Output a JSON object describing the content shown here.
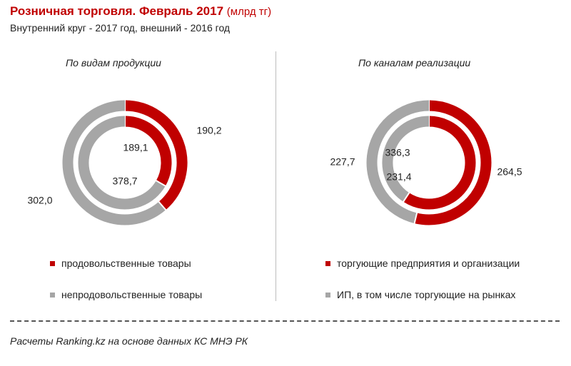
{
  "title": "Розничная торговля. Февраль 2017",
  "title_unit": "(млрд тг)",
  "subtitle": "Внутренний круг - 2017 год, внешний - 2016 год",
  "source": "Расчеты Ranking.kz на основе данных КС МНЭ РК",
  "colors": {
    "red": "#c00000",
    "gray": "#a6a6a6"
  },
  "chart_data": [
    {
      "type": "pie",
      "variant": "double-donut",
      "title": "По видам продукции",
      "categories": [
        "продовольственные товары",
        "непродовольственные товары"
      ],
      "series": [
        {
          "values": [
            189.1,
            378.7
          ],
          "ring": "inner"
        },
        {
          "values": [
            190.2,
            302.0
          ],
          "ring": "outer"
        }
      ],
      "labels": {
        "inner": [
          "189,1",
          "378,7"
        ],
        "outer": [
          "190,2",
          "302,0"
        ]
      },
      "legend": [
        {
          "label": "продовольственные товары",
          "color": "#c00000"
        },
        {
          "label": "непродовольственные товары",
          "color": "#a6a6a6"
        }
      ]
    },
    {
      "type": "pie",
      "variant": "double-donut",
      "title": "По каналам реализации",
      "categories": [
        "торгующие предприятия и организации",
        "ИП, в том числе торгующие на рынках"
      ],
      "series": [
        {
          "values": [
            336.3,
            231.4
          ],
          "ring": "inner"
        },
        {
          "values": [
            264.5,
            227.7
          ],
          "ring": "outer"
        }
      ],
      "labels": {
        "inner": [
          "336,3",
          "231,4"
        ],
        "outer": [
          "264,5",
          "227,7"
        ]
      },
      "legend": [
        {
          "label": "торгующие предприятия и организации",
          "color": "#c00000"
        },
        {
          "label": "ИП, в том числе торгующие на рынках",
          "color": "#a6a6a6"
        }
      ]
    }
  ]
}
